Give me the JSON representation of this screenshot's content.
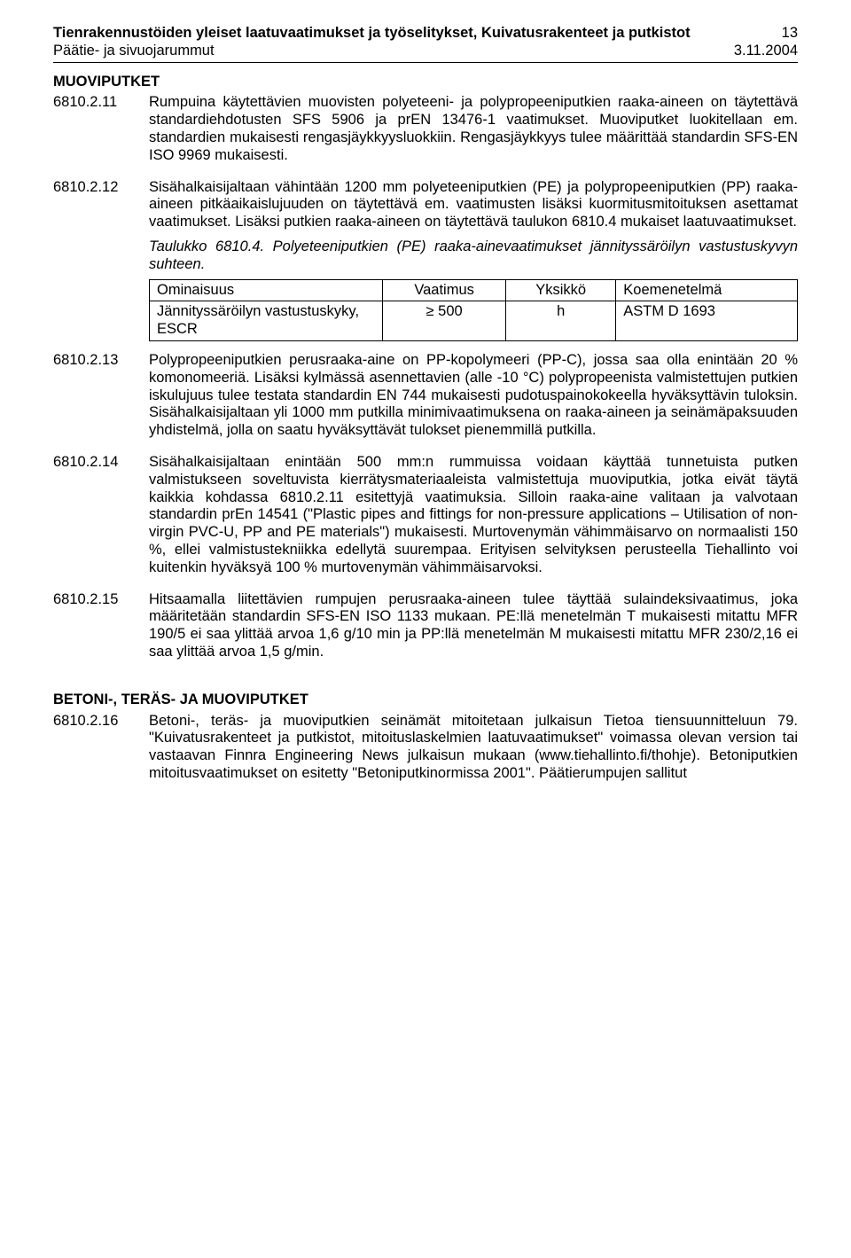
{
  "header": {
    "title_line1": "Tienrakennustöiden yleiset laatuvaatimukset ja työselitykset, Kuivatusrakenteet ja putkistot",
    "title_line2": "Päätie- ja sivuojarummut",
    "page_number": "13",
    "date": "3.11.2004"
  },
  "sections": {
    "muoviputket": {
      "title": "MUOVIPUTKET",
      "p1": {
        "num": "6810.2.11",
        "text": "Rumpuina käytettävien muovisten polyeteeni- ja polypropeeniputkien raaka-aineen on täytettävä standardiehdotusten SFS 5906 ja prEN 13476-1 vaatimukset. Muoviputket luokitellaan em. standardien mukaisesti rengasjäykkyysluokkiin. Rengasjäykkyys tulee määrittää standardin SFS-EN ISO 9969 mukaisesti."
      },
      "p2": {
        "num": "6810.2.12",
        "text": "Sisähalkaisijaltaan vähintään 1200 mm polyeteeniputkien (PE) ja polypropeeniputkien (PP) raaka-aineen pitkäaikaislujuuden on täytettävä em. vaatimusten lisäksi kuormitusmitoituksen asettamat vaatimukset. Lisäksi putkien raaka-aineen on täytettävä taulukon 6810.4 mukaiset laatuvaatimukset."
      },
      "table": {
        "caption": "Taulukko 6810.4.  Polyeteeniputkien (PE) raaka-ainevaatimukset jännityssäröilyn vastustuskyvyn suhteen.",
        "headers": [
          "Ominaisuus",
          "Vaatimus",
          "Yksikkö",
          "Koemenetelmä"
        ],
        "row1": [
          "Jännityssäröilyn vastustuskyky, ESCR",
          "≥ 500",
          "h",
          "ASTM D 1693"
        ]
      },
      "p3": {
        "num": "6810.2.13",
        "text": "Polypropeeniputkien perusraaka-aine on PP-kopolymeeri (PP-C), jossa saa olla enintään 20 % komonomeeriä. Lisäksi kylmässä asennettavien (alle -10 °C) polypropeenista valmistettujen putkien iskulujuus tulee testata standardin EN 744 mukaisesti pudotuspainokokeella hyväksyttävin tuloksin. Sisähalkaisijaltaan yli 1000 mm putkilla minimivaatimuksena on raaka-aineen ja seinämäpaksuuden yhdistelmä, jolla on saatu hyväksyttävät tulokset pienemmillä putkilla."
      },
      "p4": {
        "num": "6810.2.14",
        "text": "Sisähalkaisijaltaan enintään 500 mm:n rummuissa voidaan käyttää tunnetuista putken valmistukseen soveltuvista kierrätysmateriaaleista valmistettuja muoviputkia, jotka eivät täytä kaikkia kohdassa 6810.2.11 esitettyjä vaatimuksia. Silloin raaka-aine valitaan ja valvotaan standardin prEn 14541 (\"Plastic pipes and fittings for non-pressure applications – Utilisation of non-virgin PVC-U, PP and PE materials\") mukaisesti. Murtovenymän vähimmäisarvo on normaalisti 150 %, ellei valmistustekniikka edellytä suurempaa. Erityisen selvityksen perusteella Tiehallinto voi kuitenkin hyväksyä 100 % murtovenymän vähimmäisarvoksi."
      },
      "p5": {
        "num": "6810.2.15",
        "text": "Hitsaamalla liitettävien rumpujen perusraaka-aineen tulee täyttää sulaindeksivaatimus, joka määritetään standardin SFS-EN ISO 1133 mukaan. PE:llä menetelmän T mukaisesti mitattu MFR 190/5 ei saa ylittää arvoa 1,6 g/10 min ja PP:llä menetelmän M mukaisesti mitattu MFR 230/2,16 ei saa ylittää arvoa 1,5 g/min."
      }
    },
    "betoni": {
      "title": "BETONI-, TERÄS- JA MUOVIPUTKET",
      "p1": {
        "num": "6810.2.16",
        "text": "Betoni-, teräs- ja muoviputkien seinämät mitoitetaan julkaisun Tietoa tiensuunnitteluun 79. \"Kuivatusrakenteet ja putkistot, mitoituslaskelmien laatuvaatimukset\" voimassa olevan version tai vastaavan Finnra Engineering News julkaisun mukaan (www.tiehallinto.fi/thohje). Betoniputkien mitoitusvaatimukset on esitetty \"Betoniputkinormissa 2001\". Päätierumpujen sallitut"
      }
    }
  }
}
